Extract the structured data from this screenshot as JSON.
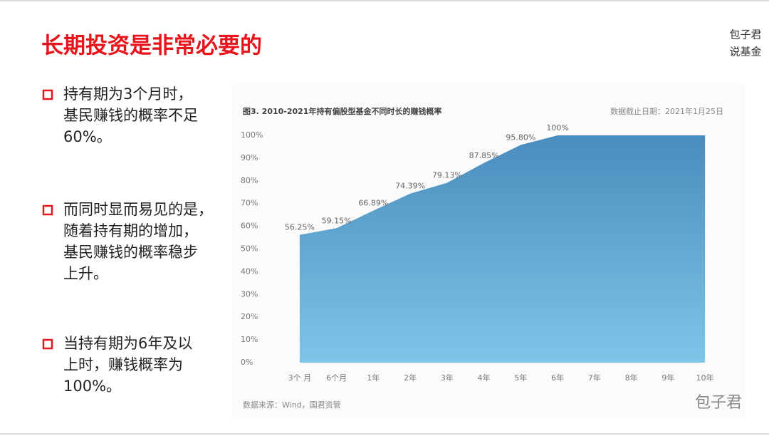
{
  "slide": {
    "title": "长期投资是非常必要的",
    "corner": [
      "包子君",
      "说基金"
    ],
    "watermark": "包子君",
    "bullets": [
      [
        "持有期为3个月时，",
        "基民赚钱的概率不足",
        "60%。"
      ],
      [
        "而同时显而易见的是，",
        "随着持有期的增加，",
        "基民赚钱的概率稳步",
        "上升。"
      ],
      [
        "当持有期为6年及以",
        "上时，赚钱概率为",
        "100%。"
      ]
    ]
  },
  "chart_data": {
    "type": "area",
    "title": "图3. 2010-2021年持有偏股型基金不同时长的赚钱概率",
    "note": "数据截止日期：2021年1月25日",
    "source": "数据来源：Wind，国君资管",
    "categories": [
      "3个 月",
      "6个月",
      "1年",
      "2年",
      "3年",
      "4年",
      "5年",
      "6年",
      "7年",
      "8年",
      "9年",
      "10年"
    ],
    "values": [
      56.25,
      59.15,
      66.89,
      74.39,
      79.13,
      87.85,
      95.8,
      100,
      100,
      100,
      100,
      100
    ],
    "value_labels": [
      "56.25%",
      "59.15%",
      "66.89%",
      "74.39%",
      "79.13%",
      "87.85%",
      "95.80%",
      "100%",
      null,
      null,
      null,
      null
    ],
    "color": [
      "#4a8cbd",
      "#7dc6e8"
    ],
    "ylim": [
      0,
      100
    ],
    "yticks": [
      {
        "value": 0,
        "label": "0%"
      },
      {
        "value": 10,
        "label": "10%"
      },
      {
        "value": 20,
        "label": "20%"
      },
      {
        "value": 30,
        "label": "30%"
      },
      {
        "value": 40,
        "label": "40%"
      },
      {
        "value": 50,
        "label": "50%"
      },
      {
        "value": 60,
        "label": "60%"
      },
      {
        "value": 70,
        "label": "70%"
      },
      {
        "value": 80,
        "label": "80%"
      },
      {
        "value": 90,
        "label": "90%"
      },
      {
        "value": 100,
        "label": "100%"
      }
    ]
  }
}
